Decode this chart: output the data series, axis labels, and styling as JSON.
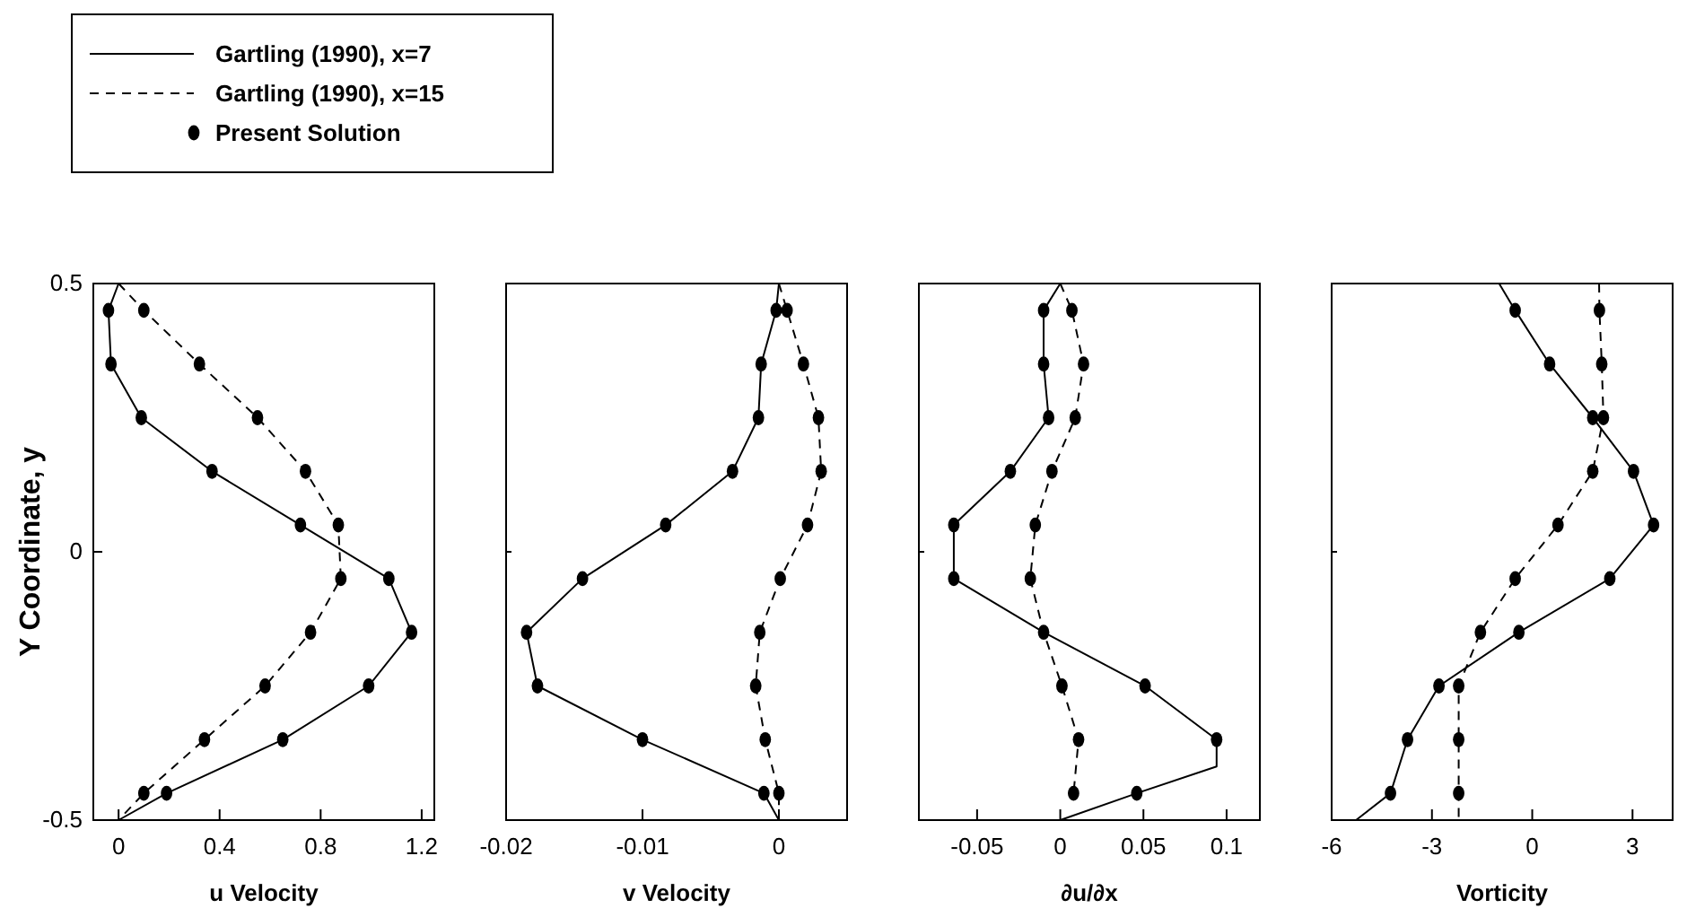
{
  "chart_data": [
    {
      "type": "line",
      "xlabel": "u Velocity",
      "ylabel": "Y Coordinate, y",
      "xlim": [
        -0.1,
        1.25
      ],
      "xticks": [
        0,
        0.4,
        0.8,
        1.2
      ],
      "ylim": [
        -0.5,
        0.5
      ],
      "yticks": [
        -0.5,
        0,
        0.5
      ],
      "legend": "top left",
      "series": [
        {
          "name": "Gartling (1990), x=7",
          "type": "line",
          "line_style": "solid",
          "color": "#000000",
          "x": [
            0,
            -0.04,
            -0.03,
            0.09,
            0.37,
            0.72,
            1.07,
            1.16,
            0.99,
            0.65,
            0.19,
            0
          ],
          "values": [
            0.5,
            0.45,
            0.35,
            0.25,
            0.15,
            0.05,
            -0.05,
            -0.15,
            -0.25,
            -0.35,
            -0.45,
            -0.5
          ]
        },
        {
          "name": "Gartling (1990), x=15",
          "type": "line",
          "line_style": "dashed",
          "color": "#000000",
          "x": [
            0,
            0.1,
            0.32,
            0.55,
            0.74,
            0.87,
            0.88,
            0.76,
            0.58,
            0.34,
            0.1,
            0
          ],
          "values": [
            0.5,
            0.45,
            0.35,
            0.25,
            0.15,
            0.05,
            -0.05,
            -0.15,
            -0.25,
            -0.35,
            -0.45,
            -0.5
          ]
        },
        {
          "name": "Present Solution",
          "type": "scatter",
          "marker": "circle",
          "color": "#000000",
          "x": [
            -0.04,
            -0.03,
            0.09,
            0.37,
            0.72,
            1.07,
            1.16,
            0.99,
            0.65,
            0.19,
            0.1,
            0.32,
            0.55,
            0.74,
            0.87,
            0.88,
            0.76,
            0.58,
            0.34,
            0.1
          ],
          "values": [
            0.45,
            0.35,
            0.25,
            0.15,
            0.05,
            -0.05,
            -0.15,
            -0.25,
            -0.35,
            -0.45,
            0.45,
            0.35,
            0.25,
            0.15,
            0.05,
            -0.05,
            -0.15,
            -0.25,
            -0.35,
            -0.45
          ]
        }
      ]
    },
    {
      "type": "line",
      "xlabel": "v Velocity",
      "xlim": [
        -0.02,
        0.005
      ],
      "xticks": [
        -0.02,
        -0.01,
        0
      ],
      "ylim": [
        -0.5,
        0.5
      ],
      "yticks": [
        -0.5,
        0,
        0.5
      ],
      "tick_labels": "x",
      "series": [
        {
          "type": "line",
          "line_style": "solid",
          "color": "#000000",
          "x": [
            0,
            -0.0002,
            -0.0013,
            -0.0015,
            -0.0034,
            -0.0083,
            -0.0144,
            -0.0185,
            -0.0177,
            -0.01,
            -0.0011,
            0
          ],
          "values": [
            0.5,
            0.45,
            0.35,
            0.25,
            0.15,
            0.05,
            -0.05,
            -0.15,
            -0.25,
            -0.35,
            -0.45,
            -0.5
          ]
        },
        {
          "type": "line",
          "line_style": "dashed",
          "color": "#000000",
          "x": [
            0,
            0.0006,
            0.0018,
            0.0029,
            0.0031,
            0.0021,
            0.0001,
            -0.0014,
            -0.0017,
            -0.001,
            0,
            0
          ],
          "values": [
            0.5,
            0.45,
            0.35,
            0.25,
            0.15,
            0.05,
            -0.05,
            -0.15,
            -0.25,
            -0.35,
            -0.45,
            -0.5
          ]
        },
        {
          "type": "scatter",
          "marker": "circle",
          "color": "#000000",
          "x": [
            -0.0002,
            -0.0013,
            -0.0015,
            -0.0034,
            -0.0083,
            -0.0144,
            -0.0185,
            -0.0177,
            -0.01,
            -0.0011,
            0.0006,
            0.0018,
            0.0029,
            0.0031,
            0.0021,
            0.0001,
            -0.0014,
            -0.0017,
            -0.001,
            0
          ],
          "values": [
            0.45,
            0.35,
            0.25,
            0.15,
            0.05,
            -0.05,
            -0.15,
            -0.25,
            -0.35,
            -0.45,
            0.45,
            0.35,
            0.25,
            0.15,
            0.05,
            -0.05,
            -0.15,
            -0.25,
            -0.35,
            -0.45
          ]
        }
      ]
    },
    {
      "type": "line",
      "xlabel": "∂u/∂x",
      "xlim": [
        -0.085,
        0.12
      ],
      "xticks": [
        -0.05,
        0,
        0.05,
        0.1
      ],
      "ylim": [
        -0.5,
        0.5
      ],
      "yticks": [
        -0.5,
        0,
        0.5
      ],
      "tick_labels": "x",
      "series": [
        {
          "type": "line",
          "line_style": "solid",
          "color": "#000000",
          "x": [
            0,
            -0.01,
            -0.01,
            -0.007,
            -0.03,
            -0.064,
            -0.064,
            -0.01,
            0.051,
            0.094,
            0.094,
            0.046,
            0
          ],
          "values": [
            0.5,
            0.45,
            0.35,
            0.25,
            0.15,
            0.05,
            -0.05,
            -0.15,
            -0.25,
            -0.35,
            -0.4,
            -0.45,
            -0.5
          ]
        },
        {
          "type": "line",
          "line_style": "dashed",
          "color": "#000000",
          "x": [
            0,
            0.007,
            0.014,
            0.009,
            -0.005,
            -0.015,
            -0.018,
            -0.01,
            0.001,
            0.011,
            0.008
          ],
          "values": [
            0.5,
            0.45,
            0.35,
            0.25,
            0.15,
            0.05,
            -0.05,
            -0.15,
            -0.25,
            -0.35,
            -0.45
          ]
        },
        {
          "type": "scatter",
          "marker": "circle",
          "color": "#000000",
          "x": [
            -0.01,
            -0.01,
            -0.007,
            -0.03,
            -0.064,
            -0.064,
            -0.01,
            0.051,
            0.094,
            0.046,
            0.007,
            0.014,
            0.009,
            -0.005,
            -0.015,
            -0.018,
            null,
            0.001,
            0.011,
            0.008
          ],
          "values": [
            0.45,
            0.35,
            0.25,
            0.15,
            0.05,
            -0.05,
            -0.15,
            -0.25,
            -0.35,
            -0.45,
            0.45,
            0.35,
            0.25,
            0.15,
            0.05,
            -0.05,
            null,
            -0.25,
            -0.35,
            -0.45
          ]
        }
      ]
    },
    {
      "type": "line",
      "xlabel": "Vorticity",
      "xlim": [
        -6,
        4.2
      ],
      "xticks": [
        -6,
        -3,
        0,
        3
      ],
      "ylim": [
        -0.5,
        0.5
      ],
      "yticks": [
        -0.5,
        0,
        0.5
      ],
      "tick_labels": "x",
      "series": [
        {
          "type": "line",
          "line_style": "solid",
          "color": "#000000",
          "x": [
            -0.99,
            -0.51,
            0.52,
            1.81,
            3.03,
            3.63,
            2.32,
            -0.4,
            -2.79,
            -3.73,
            -4.24,
            -5.27
          ],
          "values": [
            0.5,
            0.45,
            0.35,
            0.25,
            0.15,
            0.05,
            -0.05,
            -0.15,
            -0.25,
            -0.35,
            -0.45,
            -0.5
          ]
        },
        {
          "type": "line",
          "line_style": "dashed",
          "color": "#000000",
          "x": [
            2.0,
            2.01,
            2.08,
            2.13,
            1.81,
            0.77,
            -0.51,
            -1.55,
            -2.2,
            -2.2,
            -2.2,
            -2.2
          ],
          "values": [
            0.5,
            0.45,
            0.35,
            0.25,
            0.15,
            0.05,
            -0.05,
            -0.15,
            -0.25,
            -0.35,
            -0.45,
            -0.5
          ]
        },
        {
          "type": "scatter",
          "marker": "circle",
          "color": "#000000",
          "x": [
            -0.51,
            0.52,
            1.81,
            3.03,
            3.63,
            2.32,
            -0.4,
            -2.79,
            -3.73,
            -4.24,
            2.01,
            2.08,
            2.13,
            1.81,
            0.77,
            -0.51,
            -1.55,
            -2.2,
            -2.2,
            -2.2
          ],
          "values": [
            0.45,
            0.35,
            0.25,
            0.15,
            0.05,
            -0.05,
            -0.15,
            -0.25,
            -0.35,
            -0.45,
            0.45,
            0.35,
            0.25,
            0.15,
            0.05,
            -0.05,
            -0.15,
            -0.25,
            -0.35,
            -0.45
          ]
        }
      ]
    }
  ]
}
